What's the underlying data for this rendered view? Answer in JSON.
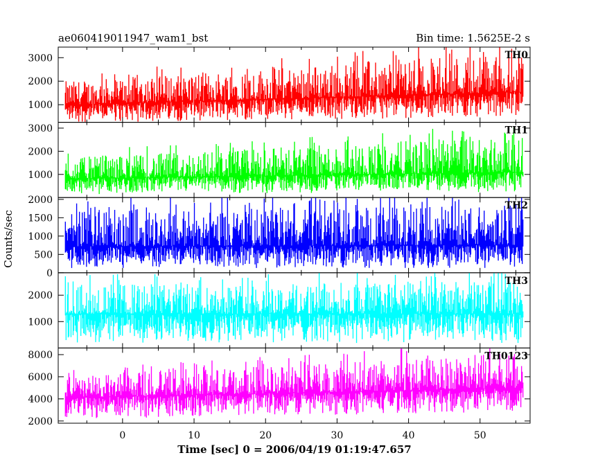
{
  "header": {
    "title": "ae060419011947_wam1_bst",
    "bin_time": "Bin time: 1.5625E-2 s"
  },
  "chart_data": {
    "type": "line",
    "title": "ae060419011947_wam1_bst",
    "xlabel": "Time [sec] 0 = 2006/04/19 01:19:47.657",
    "ylabel": "Counts/sec",
    "xlim": [
      -9,
      57
    ],
    "data_xrange": [
      -8,
      56
    ],
    "xticks": [
      0,
      10,
      20,
      30,
      40,
      50
    ],
    "grid": false,
    "panels": [
      {
        "name": "TH0",
        "color": "#ff0000",
        "ylim": [
          250,
          3450
        ],
        "yticks": [
          1000,
          2000,
          3000
        ],
        "baseline_start": 1000,
        "baseline_end": 1550,
        "low_start": 220,
        "low_end": 480,
        "peak_start": 2000,
        "peak_end": 3300
      },
      {
        "name": "TH1",
        "color": "#00ff00",
        "ylim": [
          0,
          3250
        ],
        "yticks": [
          1000,
          2000,
          3000
        ],
        "baseline_start": 820,
        "baseline_end": 1100,
        "low_start": 130,
        "low_end": 240,
        "peak_start": 1700,
        "peak_end": 2700
      },
      {
        "name": "TH2",
        "color": "#0000ff",
        "ylim": [
          0,
          2050
        ],
        "yticks": [
          0,
          500,
          1000,
          1500,
          2000
        ],
        "baseline_start": 720,
        "baseline_end": 760,
        "low_start": 120,
        "low_end": 120,
        "peak_start": 1700,
        "peak_end": 1850
      },
      {
        "name": "TH3",
        "color": "#00ffff",
        "ylim": [
          0,
          2850
        ],
        "yticks": [
          1000,
          2000
        ],
        "baseline_start": 1300,
        "baseline_end": 1300,
        "low_start": 170,
        "low_end": 170,
        "peak_start": 2400,
        "peak_end": 2550
      },
      {
        "name": "TH0123",
        "color": "#ff00ff",
        "ylim": [
          1800,
          8600
        ],
        "yticks": [
          2000,
          4000,
          6000,
          8000
        ],
        "baseline_start": 4100,
        "baseline_end": 5000,
        "low_start": 2200,
        "low_end": 2800,
        "peak_start": 6000,
        "peak_end": 8200
      }
    ]
  }
}
